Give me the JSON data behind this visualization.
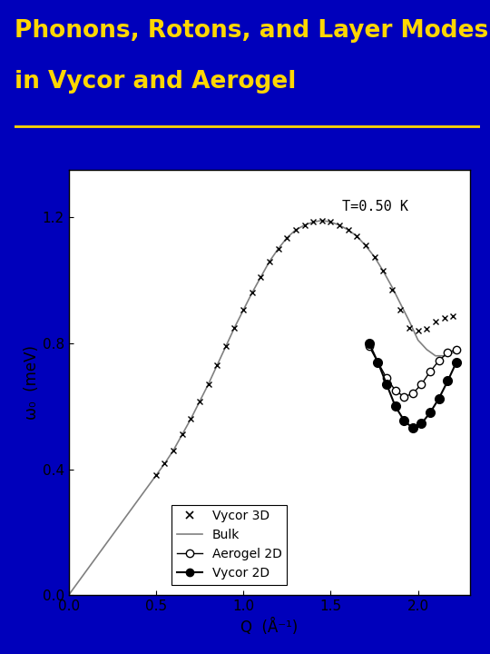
{
  "bg_color": "#0000BB",
  "title_line1": "Phonons, Rotons, and Layer Modes",
  "title_line2": "in Vycor and Aerogel",
  "title_color": "#FFD700",
  "title_fontsize": 19,
  "separator_color": "#FFD700",
  "plot_bg": "#FFFFFF",
  "annotation": "T=0.50 K",
  "xlabel": "Q  (Å⁻¹)",
  "ylabel": "ω₀  (meV)",
  "xlim": [
    0.0,
    2.3
  ],
  "ylim": [
    0.0,
    1.35
  ],
  "xticks": [
    0.0,
    0.5,
    1.0,
    1.5,
    2.0
  ],
  "yticks": [
    0.0,
    0.4,
    0.8,
    1.2
  ],
  "bulk_Q": [
    0.0,
    0.05,
    0.1,
    0.15,
    0.2,
    0.25,
    0.3,
    0.35,
    0.4,
    0.45,
    0.5,
    0.55,
    0.6,
    0.65,
    0.7,
    0.75,
    0.8,
    0.85,
    0.9,
    0.95,
    1.0,
    1.05,
    1.1,
    1.15,
    1.2,
    1.25,
    1.3,
    1.35,
    1.4,
    1.45,
    1.5,
    1.55,
    1.6,
    1.65,
    1.7,
    1.75,
    1.8,
    1.85,
    1.9,
    1.95,
    2.0,
    2.05,
    2.1,
    2.15,
    2.2
  ],
  "bulk_omega": [
    0.0,
    0.038,
    0.076,
    0.114,
    0.152,
    0.19,
    0.228,
    0.266,
    0.304,
    0.342,
    0.38,
    0.418,
    0.46,
    0.51,
    0.56,
    0.615,
    0.67,
    0.73,
    0.79,
    0.85,
    0.905,
    0.96,
    1.01,
    1.06,
    1.1,
    1.135,
    1.16,
    1.175,
    1.185,
    1.19,
    1.185,
    1.175,
    1.16,
    1.14,
    1.11,
    1.075,
    1.03,
    0.98,
    0.925,
    0.87,
    0.81,
    0.78,
    0.76,
    0.76,
    0.77
  ],
  "vycor3d_Q": [
    0.5,
    0.55,
    0.6,
    0.65,
    0.7,
    0.75,
    0.8,
    0.85,
    0.9,
    0.95,
    1.0,
    1.05,
    1.1,
    1.15,
    1.2,
    1.25,
    1.3,
    1.35,
    1.4,
    1.45,
    1.5,
    1.55,
    1.6,
    1.65,
    1.7,
    1.75,
    1.8,
    1.85,
    1.9,
    1.95,
    2.0,
    2.05,
    2.1,
    2.15,
    2.2
  ],
  "vycor3d_omega": [
    0.38,
    0.418,
    0.46,
    0.51,
    0.56,
    0.615,
    0.67,
    0.73,
    0.79,
    0.85,
    0.905,
    0.96,
    1.01,
    1.06,
    1.1,
    1.135,
    1.16,
    1.175,
    1.185,
    1.19,
    1.185,
    1.175,
    1.16,
    1.14,
    1.11,
    1.075,
    1.03,
    0.97,
    0.905,
    0.85,
    0.84,
    0.845,
    0.87,
    0.88,
    0.885
  ],
  "aerogel2d_Q": [
    1.72,
    1.77,
    1.82,
    1.87,
    1.92,
    1.97,
    2.02,
    2.07,
    2.12,
    2.17,
    2.22
  ],
  "aerogel2d_omega": [
    0.79,
    0.74,
    0.69,
    0.65,
    0.63,
    0.64,
    0.67,
    0.71,
    0.745,
    0.77,
    0.78
  ],
  "vycor2d_Q": [
    1.72,
    1.77,
    1.82,
    1.87,
    1.92,
    1.97,
    2.02,
    2.07,
    2.12,
    2.17,
    2.22
  ],
  "vycor2d_omega": [
    0.8,
    0.74,
    0.67,
    0.6,
    0.555,
    0.53,
    0.545,
    0.58,
    0.625,
    0.68,
    0.74
  ],
  "legend_labels": [
    "Vycor 3D",
    "Bulk",
    "Aerogel 2D",
    "Vycor 2D"
  ]
}
